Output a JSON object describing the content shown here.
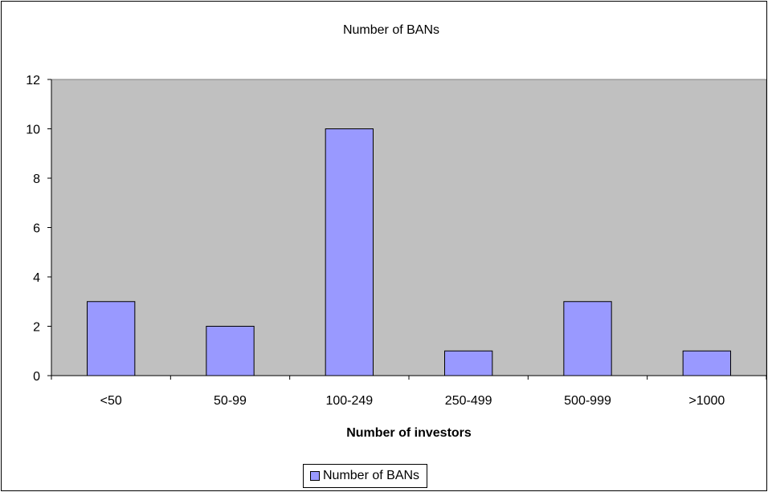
{
  "chart_data": {
    "type": "bar",
    "title": "Number of BANs",
    "xlabel": "Number of investors",
    "ylabel": "",
    "categories": [
      "<50",
      "50-99",
      "100-249",
      "250-499",
      "500-999",
      ">1000"
    ],
    "series": [
      {
        "name": "Number of BANs",
        "values": [
          3,
          2,
          10,
          1,
          3,
          1
        ]
      }
    ],
    "ylim": [
      0,
      12
    ],
    "yticks": [
      0,
      2,
      4,
      6,
      8,
      10,
      12
    ],
    "grid": false,
    "legend": "bottom",
    "colors": {
      "bar_fill": "#9999FF",
      "plot_background": "#C0C0C0"
    }
  }
}
